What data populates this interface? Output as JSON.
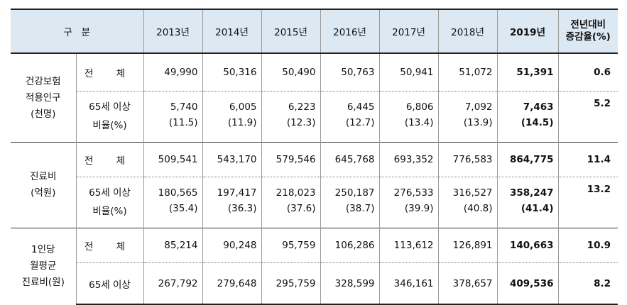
{
  "header": {
    "category": "구   분",
    "years": [
      "2013년",
      "2014년",
      "2015년",
      "2016년",
      "2017년",
      "2018년"
    ],
    "latest_year": "2019년",
    "change_line1": "전년대비",
    "change_line2": "증감율(%)"
  },
  "groups": [
    {
      "label_lines": [
        "건강보험",
        "적용인구",
        "(천명)"
      ],
      "total": {
        "label": "전 체",
        "values": [
          "49,990",
          "50,316",
          "50,490",
          "50,763",
          "50,941",
          "51,072"
        ],
        "latest": "51,391",
        "change": "0.6"
      },
      "age65": {
        "label": "65세 이상",
        "values": [
          "5,740",
          "6,005",
          "6,223",
          "6,445",
          "6,806",
          "7,092"
        ],
        "latest": "7,463",
        "change": "5.2"
      },
      "ratio": {
        "label": "비율(%)",
        "values": [
          "(11.5)",
          "(11.9)",
          "(12.3)",
          "(12.7)",
          "(13.4)",
          "(13.9)"
        ],
        "latest": "(14.5)"
      }
    },
    {
      "label_lines": [
        "진료비",
        "(억원)"
      ],
      "total": {
        "label": "전 체",
        "values": [
          "509,541",
          "543,170",
          "579,546",
          "645,768",
          "693,352",
          "776,583"
        ],
        "latest": "864,775",
        "change": "11.4"
      },
      "age65": {
        "label": "65세 이상",
        "values": [
          "180,565",
          "197,417",
          "218,023",
          "250,187",
          "276,533",
          "316,527"
        ],
        "latest": "358,247",
        "change": "13.2"
      },
      "ratio": {
        "label": "비율(%)",
        "values": [
          "(35.4)",
          "(36.3)",
          "(37.6)",
          "(38.7)",
          "(39.9)",
          "(40.8)"
        ],
        "latest": "(41.4)"
      }
    },
    {
      "label_lines": [
        "1인당",
        "월평균",
        "진료비(원)"
      ],
      "total": {
        "label": "전 체",
        "values": [
          "85,214",
          "90,248",
          "95,759",
          "106,286",
          "113,612",
          "126,891"
        ],
        "latest": "140,663",
        "change": "10.9"
      },
      "age65": {
        "label": "65세 이상",
        "values": [
          "267,792",
          "279,648",
          "295,759",
          "328,599",
          "346,161",
          "378,657"
        ],
        "latest": "409,536",
        "change": "8.2"
      }
    }
  ]
}
